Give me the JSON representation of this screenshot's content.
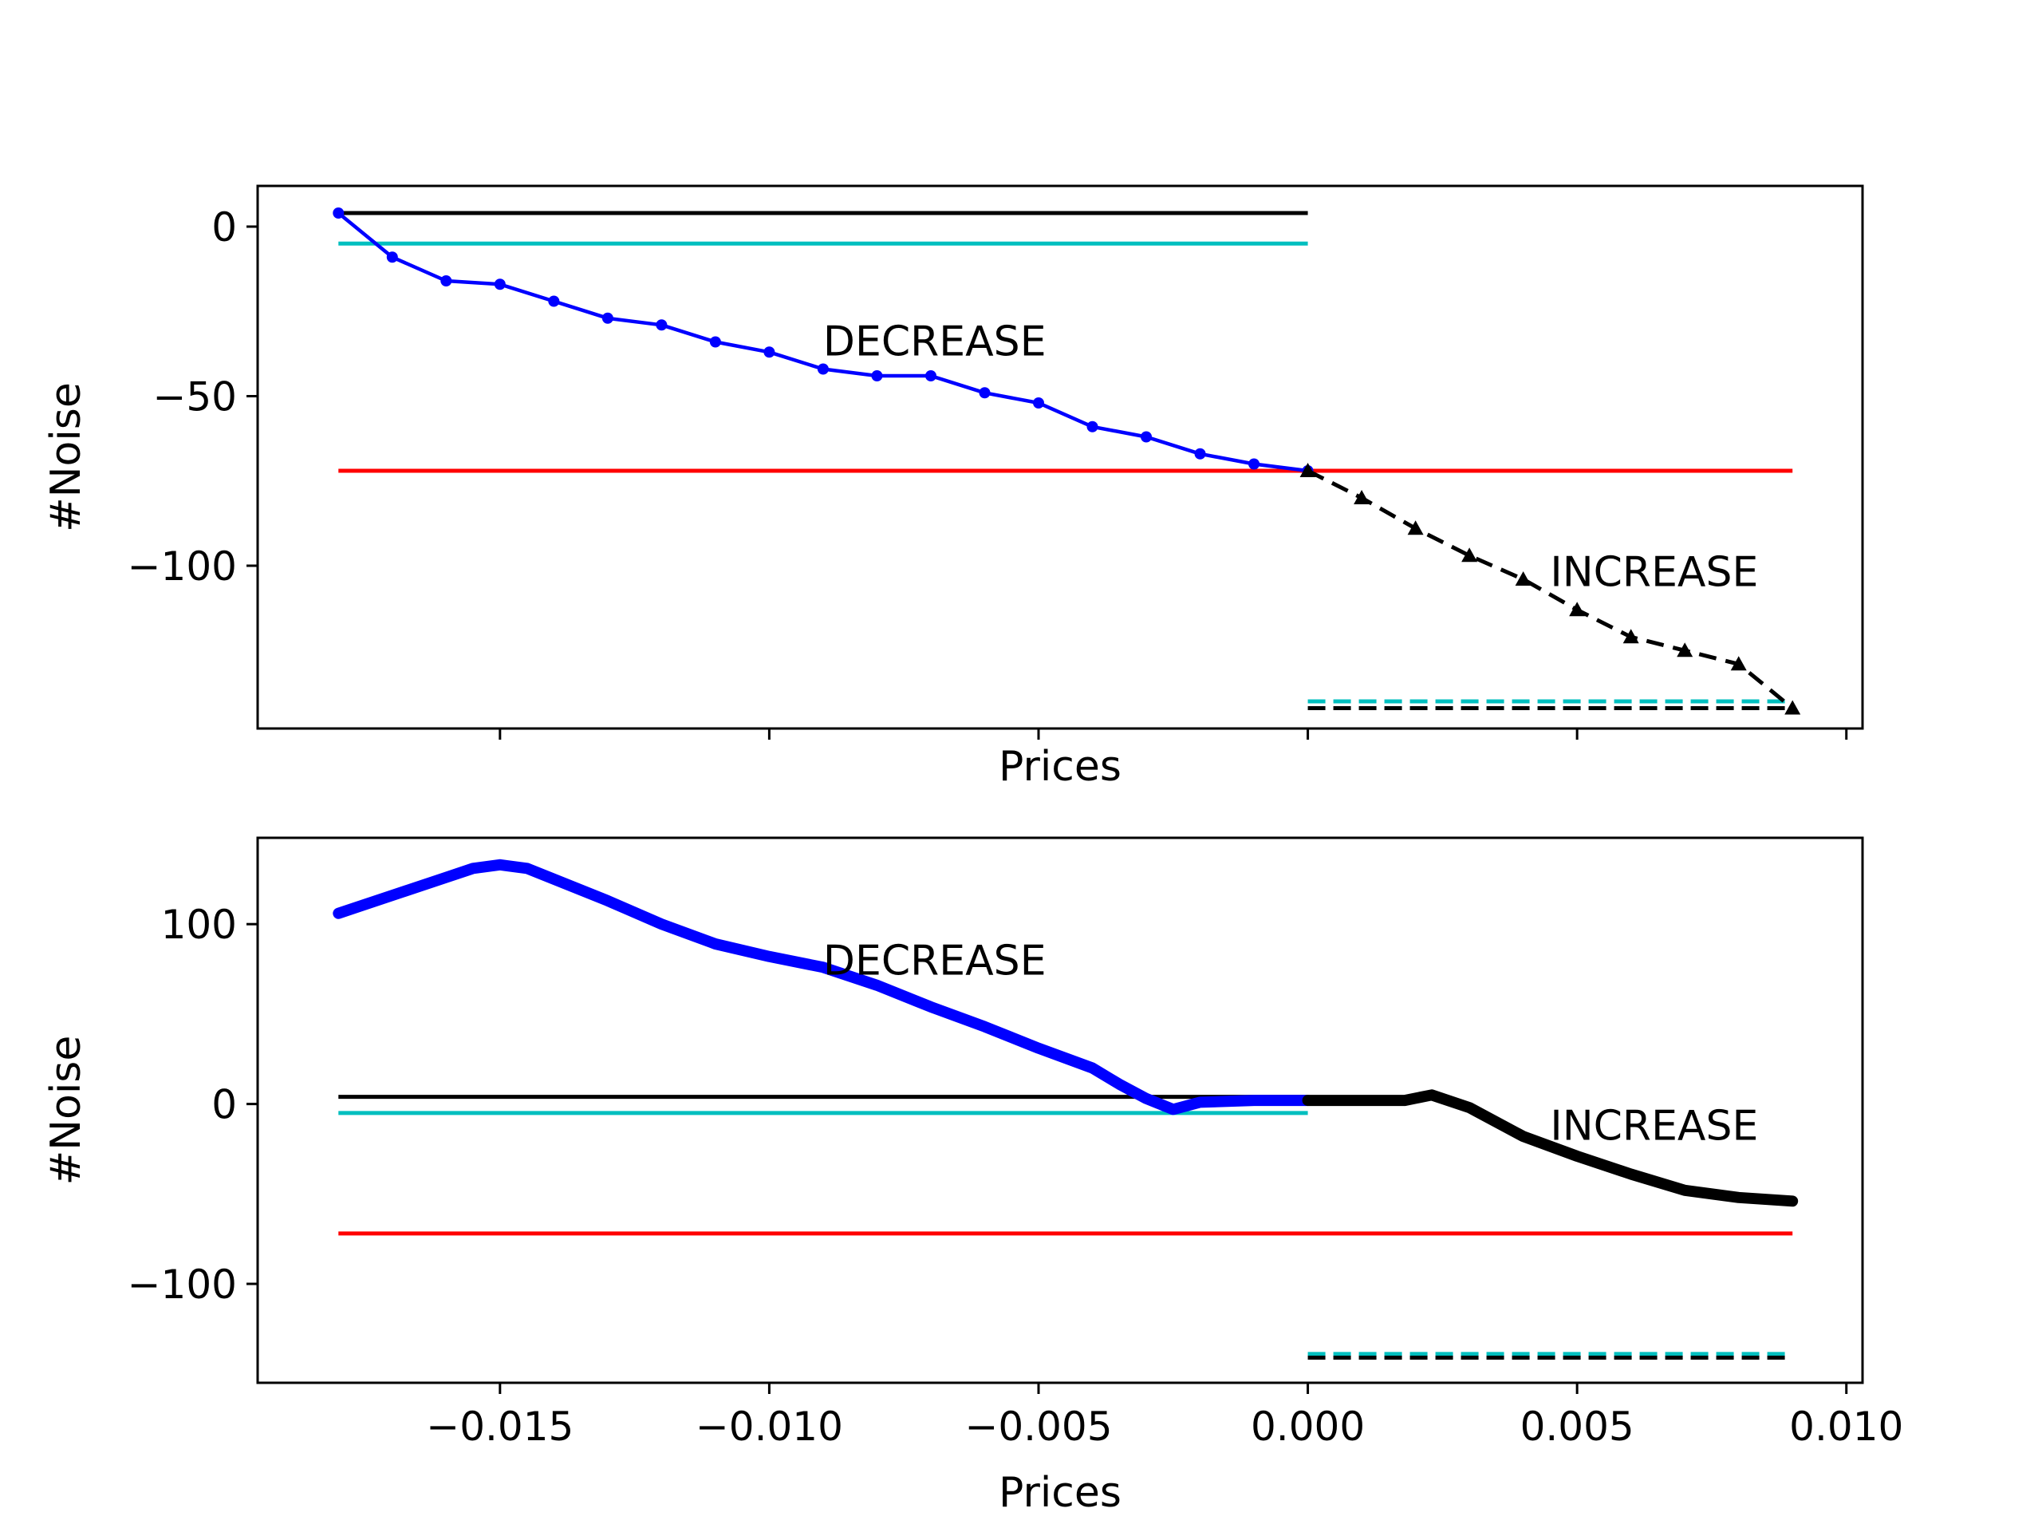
{
  "chart_data": [
    {
      "type": "line",
      "panel": "top",
      "xlabel": "Prices",
      "ylabel": "#Noise",
      "show_x_tick_labels": false,
      "xlim": [
        -0.0195,
        0.0103
      ],
      "ylim": [
        -148,
        12
      ],
      "x_ticks": [
        -0.015,
        -0.01,
        -0.005,
        0.0,
        0.005,
        0.01
      ],
      "y_ticks": [
        0,
        -50,
        -100
      ],
      "y_tick_labels": [
        "0",
        "−50",
        "−100"
      ],
      "series": [
        {
          "style": "solid-dot",
          "color": "#0000ff",
          "x": [
            -0.018,
            -0.017,
            -0.016,
            -0.015,
            -0.014,
            -0.013,
            -0.012,
            -0.011,
            -0.01,
            -0.009,
            -0.008,
            -0.007,
            -0.006,
            -0.005,
            -0.004,
            -0.003,
            -0.002,
            -0.001,
            0.0
          ],
          "y": [
            4,
            -9,
            -16,
            -17,
            -22,
            -27,
            -29,
            -34,
            -37,
            -42,
            -44,
            -44,
            -49,
            -52,
            -59,
            -62,
            -67,
            -70,
            -72
          ]
        },
        {
          "style": "dashed-triangle",
          "color": "#000000",
          "x": [
            0.0,
            0.001,
            0.002,
            0.003,
            0.004,
            0.005,
            0.006,
            0.007,
            0.008,
            0.009
          ],
          "y": [
            -72,
            -80,
            -89,
            -97,
            -104,
            -113,
            -121,
            -125,
            -129,
            -142
          ]
        }
      ],
      "hlines": [
        {
          "y": 4,
          "x0": -0.018,
          "x1": 0.0,
          "color": "#000000",
          "style": "solid"
        },
        {
          "y": -5,
          "x0": -0.018,
          "x1": 0.0,
          "color": "#00bfbf",
          "style": "solid"
        },
        {
          "y": -72,
          "x0": -0.018,
          "x1": 0.009,
          "color": "#ff0000",
          "style": "solid"
        },
        {
          "y": -140,
          "x0": 0.0,
          "x1": 0.009,
          "color": "#00bfbf",
          "style": "dashed"
        },
        {
          "y": -142,
          "x0": 0.0,
          "x1": 0.009,
          "color": "#000000",
          "style": "dashed"
        }
      ],
      "annotations": [
        {
          "text": "DECREASE",
          "x": -0.009,
          "y": -38
        },
        {
          "text": "INCREASE",
          "x": 0.0045,
          "y": -106
        }
      ]
    },
    {
      "type": "line",
      "panel": "bottom",
      "xlabel": "Prices",
      "ylabel": "#Noise",
      "show_x_tick_labels": true,
      "xlim": [
        -0.0195,
        0.0103
      ],
      "ylim": [
        -155,
        148
      ],
      "x_ticks": [
        -0.015,
        -0.01,
        -0.005,
        0.0,
        0.005,
        0.01
      ],
      "x_tick_labels": [
        "−0.015",
        "−0.010",
        "−0.005",
        "0.000",
        "0.005",
        "0.010"
      ],
      "y_ticks": [
        100,
        0,
        -100
      ],
      "y_tick_labels": [
        "100",
        "0",
        "−100"
      ],
      "series": [
        {
          "style": "thick-blue",
          "color": "#0000ff",
          "x": [
            -0.018,
            -0.017,
            -0.016,
            -0.0155,
            -0.015,
            -0.0145,
            -0.014,
            -0.013,
            -0.012,
            -0.011,
            -0.01,
            -0.009,
            -0.008,
            -0.007,
            -0.006,
            -0.005,
            -0.004,
            -0.0035,
            -0.003,
            -0.0025,
            -0.002,
            -0.001,
            0.0
          ],
          "y": [
            106,
            116,
            126,
            131,
            133,
            131,
            125,
            113,
            100,
            89,
            82,
            76,
            66,
            54,
            43,
            31,
            20,
            11,
            3,
            -3,
            1,
            2,
            2
          ]
        },
        {
          "style": "thick-black",
          "color": "#000000",
          "x": [
            0.0,
            0.001,
            0.0018,
            0.0023,
            0.003,
            0.004,
            0.005,
            0.006,
            0.007,
            0.008,
            0.009
          ],
          "y": [
            2,
            2,
            2,
            5,
            -2,
            -18,
            -29,
            -39,
            -48,
            -52,
            -54
          ]
        }
      ],
      "hlines": [
        {
          "y": 4,
          "x0": -0.018,
          "x1": 0.0,
          "color": "#000000",
          "style": "solid"
        },
        {
          "y": -5,
          "x0": -0.018,
          "x1": 0.0,
          "color": "#00bfbf",
          "style": "solid"
        },
        {
          "y": -72,
          "x0": -0.018,
          "x1": 0.009,
          "color": "#ff0000",
          "style": "solid"
        },
        {
          "y": -139,
          "x0": 0.0,
          "x1": 0.009,
          "color": "#00bfbf",
          "style": "dashed"
        },
        {
          "y": -141,
          "x0": 0.0,
          "x1": 0.009,
          "color": "#000000",
          "style": "dashed"
        }
      ],
      "annotations": [
        {
          "text": "DECREASE",
          "x": -0.009,
          "y": 72
        },
        {
          "text": "INCREASE",
          "x": 0.0045,
          "y": -20
        }
      ]
    }
  ]
}
